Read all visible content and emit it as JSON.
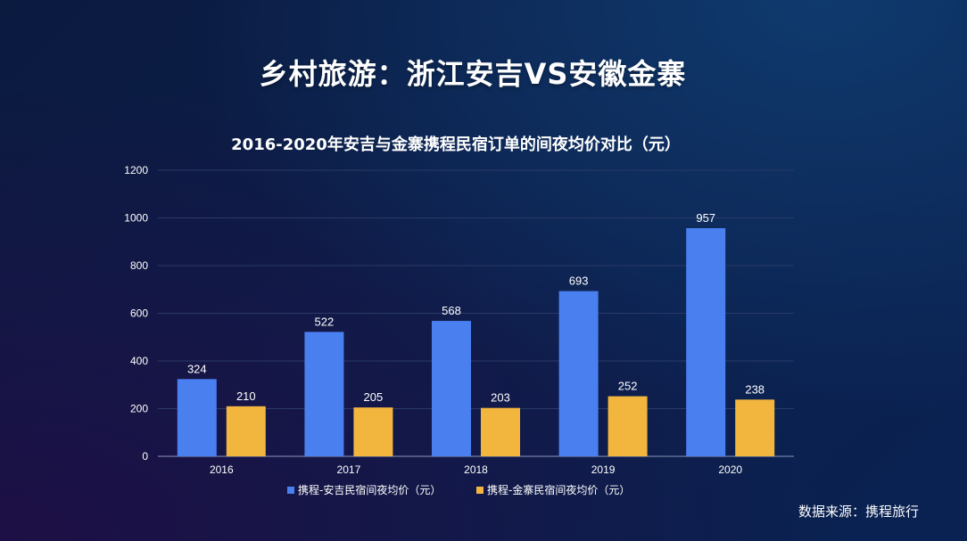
{
  "title": "乡村旅游：浙江安吉VS安徽金寨",
  "source_text": "数据来源：携程旅行",
  "colors": {
    "series_1": "#4a7ff0",
    "series_2": "#f2b63f",
    "grid": "#2a3a66",
    "axis": "#8b97b8",
    "text": "#ffffff"
  },
  "chart_data": {
    "type": "bar",
    "title": "2016-2020年安吉与金寨携程民宿订单的间夜均价对比（元）",
    "categories": [
      "2016",
      "2017",
      "2018",
      "2019",
      "2020"
    ],
    "series": [
      {
        "name": "携程-安吉民宿间夜均价（元）",
        "values": [
          324,
          522,
          568,
          693,
          957
        ]
      },
      {
        "name": "携程-金寨民宿间夜均价（元）",
        "values": [
          210,
          205,
          203,
          252,
          238
        ]
      }
    ],
    "ylim": [
      0,
      1200
    ],
    "yticks": [
      0,
      200,
      400,
      600,
      800,
      1000,
      1200
    ],
    "grid": true,
    "legend": "bottom",
    "xlabel": "",
    "ylabel": ""
  }
}
